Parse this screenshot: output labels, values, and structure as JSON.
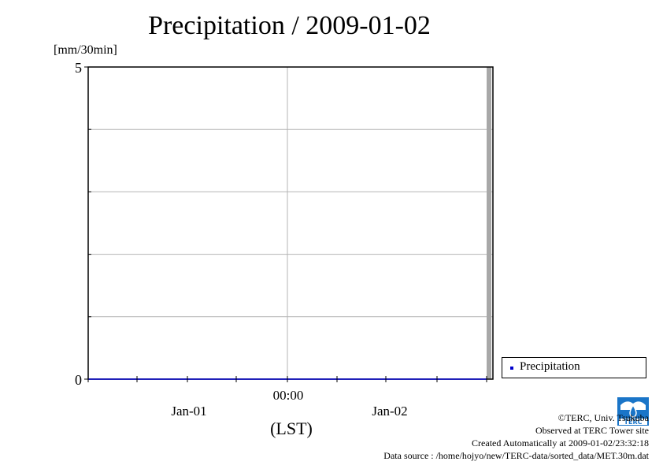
{
  "chart_data": {
    "type": "bar",
    "title": "Precipitation / 2009-01-02",
    "ylabel": "[mm/30min]",
    "ylim": [
      0,
      5
    ],
    "y_ticks": [
      0,
      5
    ],
    "grid": true,
    "x_ticks": [
      "Jan-01",
      "00:00",
      "Jan-02"
    ],
    "x_center_label": "00:00",
    "xlabel": "(LST)",
    "series": [
      {
        "name": "Precipitation",
        "color": "#0000cc",
        "values": []
      }
    ],
    "legend_position": "right"
  },
  "credits": {
    "copyright": "©TERC, Univ. Tsukuba",
    "observed": "Observed at TERC Tower site",
    "created": "Created Automatically at 2009-01-02/23:32:18",
    "source": "Data source : /home/hojyo/new/TERC-data/sorted_data/MET.30m.dat",
    "logo_text": "TERC"
  },
  "colors": {
    "grid": "#b4b4b4",
    "axis": "#000000",
    "current_marker": "#a8a8a8",
    "logo": "#1a75c8"
  }
}
